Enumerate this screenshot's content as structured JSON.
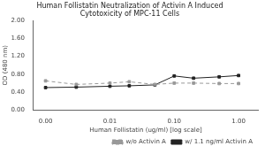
{
  "chart_data": {
    "type": "line",
    "title": "Human Follistatin Neutralization of Activin A Induced\nCytotoxicity of MPC-11 Cells",
    "x_label": "Human Follistatin (ug/ml) [log scale]",
    "y_label": "OD (480 nm)",
    "x": [
      0.001,
      0.003,
      0.01,
      0.02,
      0.05,
      0.1,
      0.2,
      0.5,
      1.0
    ],
    "series": [
      {
        "name": "w/o Activin A",
        "color": "#999999",
        "marker": "square",
        "line_style": "dashed",
        "values": [
          0.65,
          0.57,
          0.6,
          0.63,
          0.57,
          0.6,
          0.6,
          0.59,
          0.59
        ]
      },
      {
        "name": "w/ 1.1 ng/ml Activin A",
        "color": "#222222",
        "marker": "square",
        "line_style": "solid",
        "values": [
          0.5,
          0.51,
          0.53,
          0.54,
          0.56,
          0.76,
          0.71,
          0.74,
          0.77
        ]
      }
    ],
    "log": "x",
    "xlim": [
      0.00065,
      2.0
    ],
    "xticks": [
      {
        "value": 0.001,
        "label": "0.00"
      },
      0.01,
      {
        "value": 0.1,
        "label": "0.10"
      },
      {
        "value": 1.0,
        "label": "1.00"
      }
    ],
    "ylim": [
      0.0,
      2.0
    ],
    "yticks": [
      {
        "value": 0.0,
        "label": "0.00"
      },
      {
        "value": 0.4,
        "label": "0.40"
      },
      {
        "value": 0.8,
        "label": "0.80"
      },
      {
        "value": 1.2,
        "label": "1.20"
      },
      {
        "value": 1.6,
        "label": "1.60"
      },
      {
        "value": 2.0,
        "label": "2.00"
      }
    ],
    "grid": false,
    "legend": "lower right"
  }
}
